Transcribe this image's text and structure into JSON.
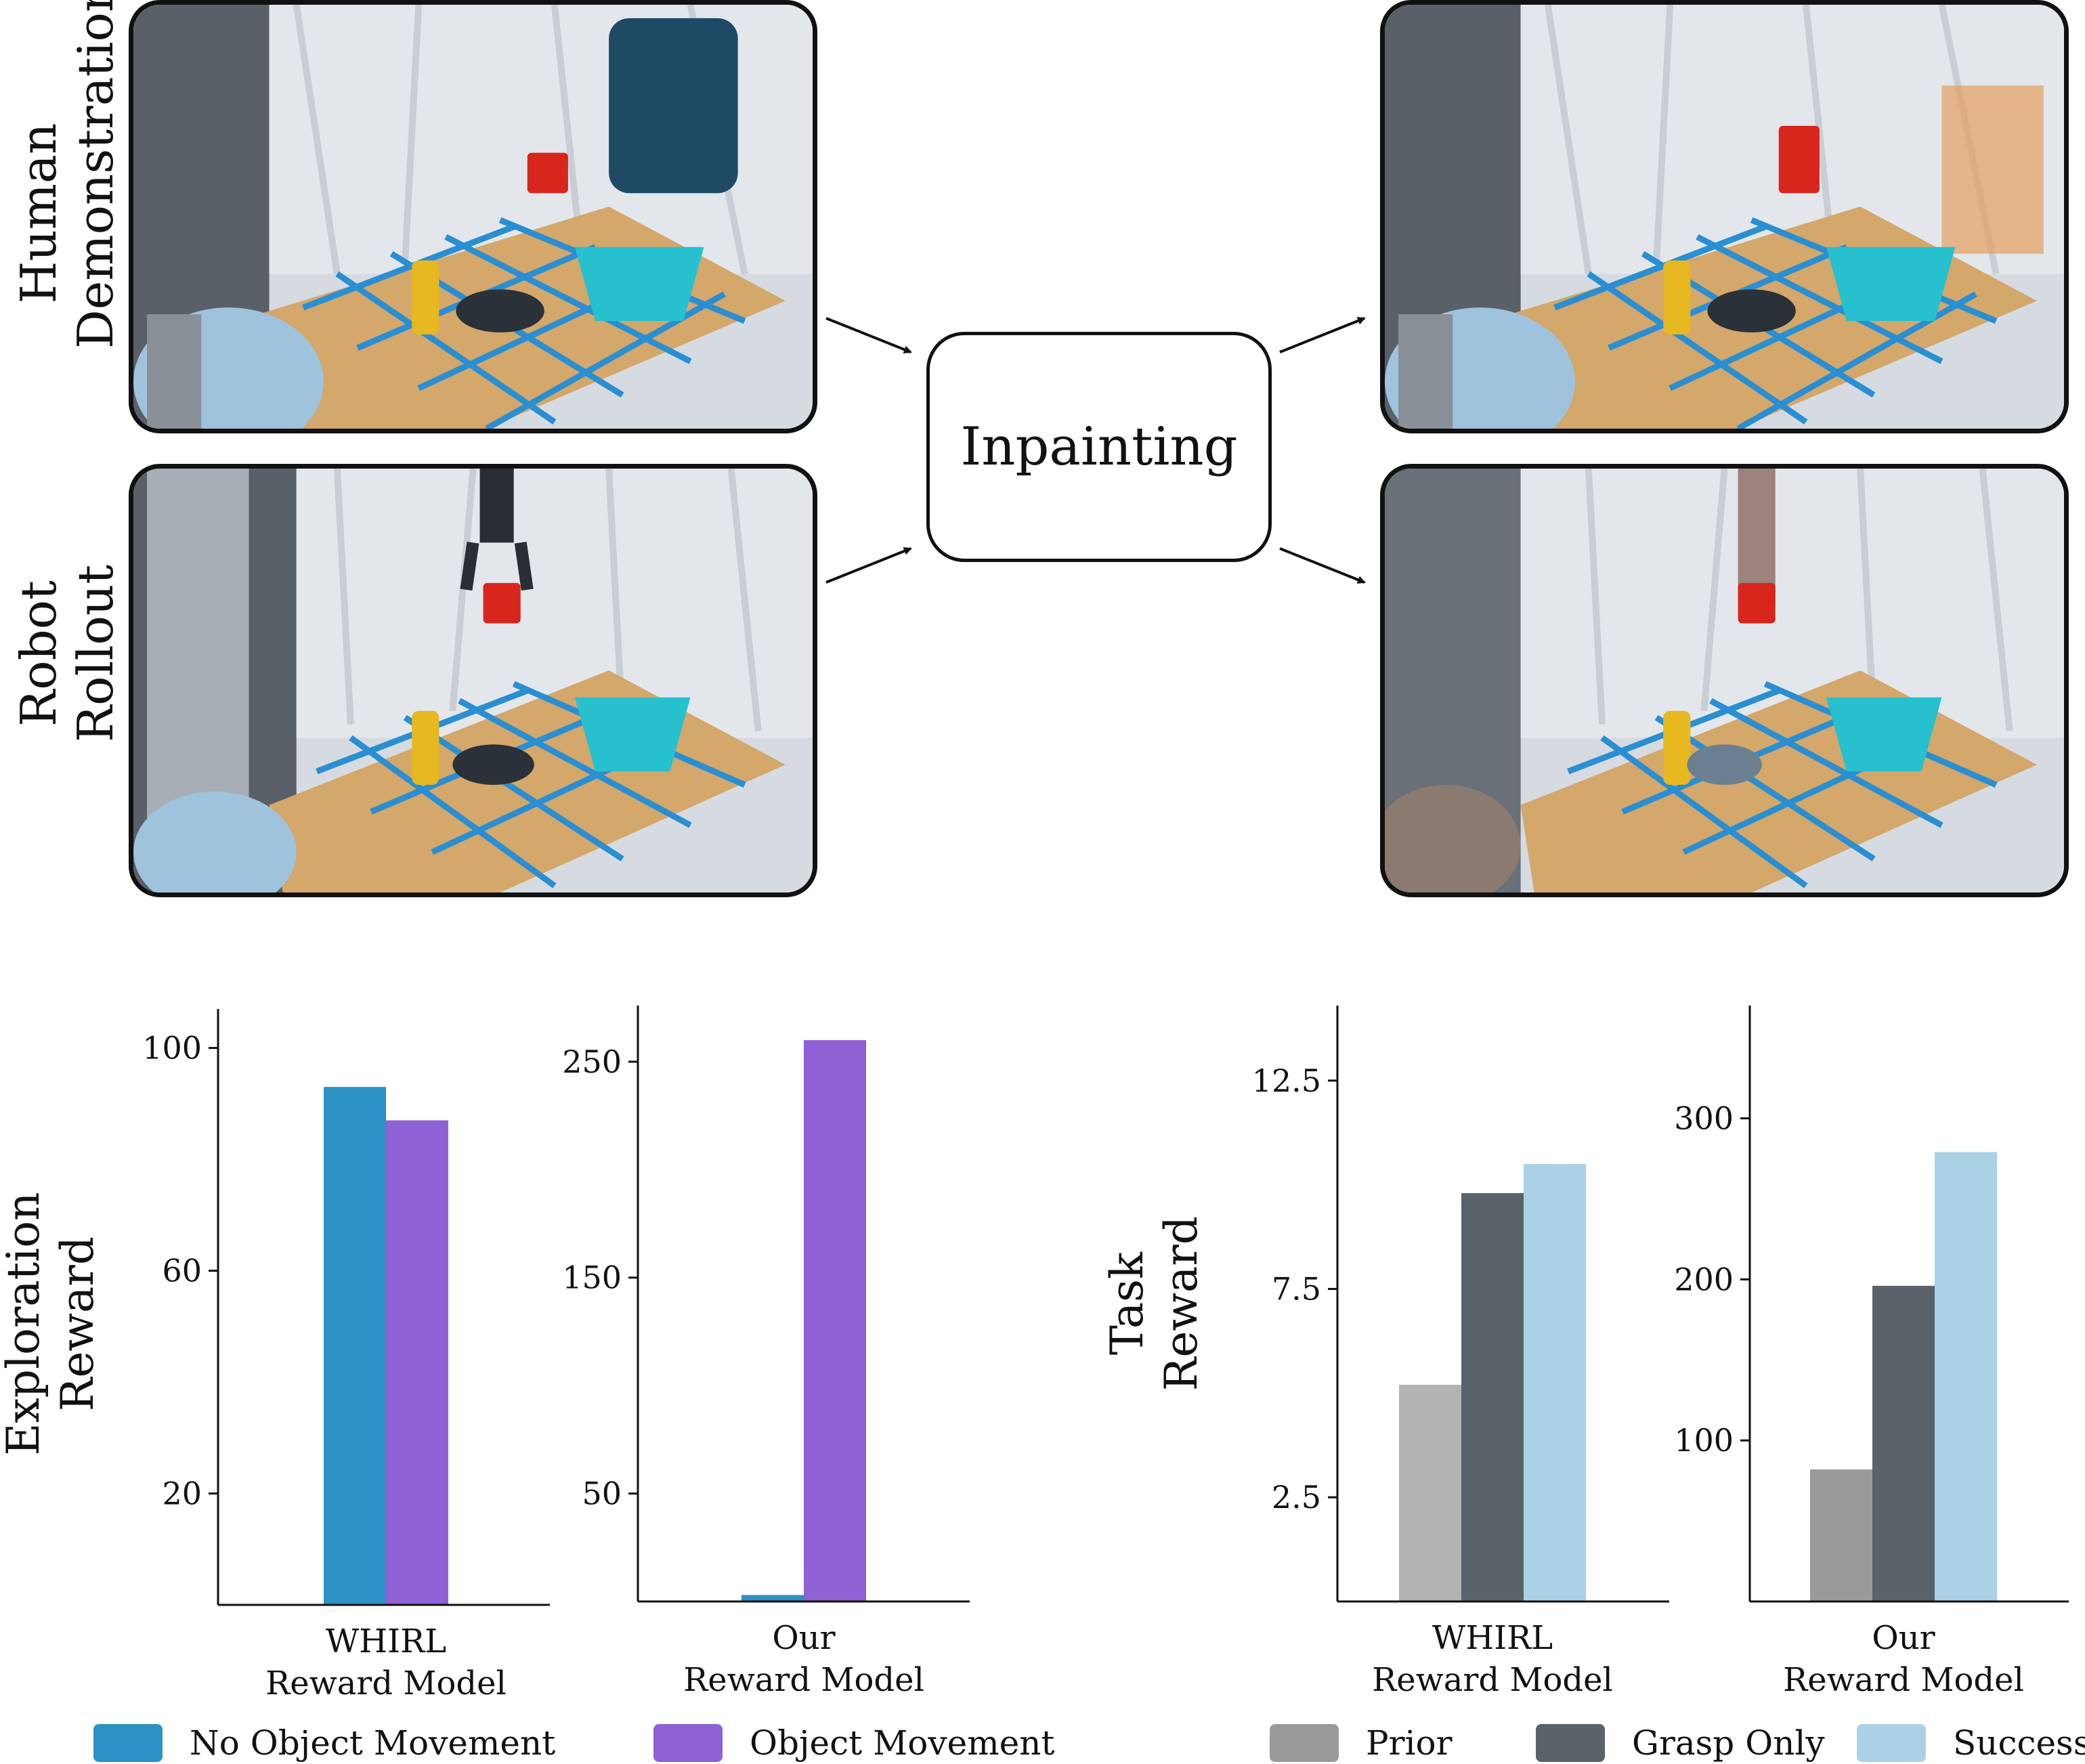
{
  "figure": {
    "rows": {
      "human_label": [
        "Human",
        "Demonstration"
      ],
      "robot_label": [
        "Robot",
        "Rollout"
      ]
    },
    "process_label": "Inpainting",
    "images": [
      {
        "name": "human-demonstration-photo"
      },
      {
        "name": "robot-rollout-photo"
      },
      {
        "name": "inpainted-human-photo"
      },
      {
        "name": "inpainted-robot-photo"
      }
    ]
  },
  "colors": {
    "no_object_movement": "#2b92c3",
    "object_movement": "#8e61d4",
    "prior": "#b3b3b3",
    "grasp_only": "#5a626a",
    "success": "#abd1e6",
    "prior_our": "#9a9a9a"
  },
  "chart_data": [
    {
      "type": "bar",
      "group_label": "Exploration Reward",
      "ylabel_lines": [
        "Exploration",
        "Reward"
      ],
      "category_lines": [
        "WHIRL",
        "Reward Model"
      ],
      "series": [
        {
          "name": "No Object Movement",
          "value": 93
        },
        {
          "name": "Object Movement",
          "value": 87
        }
      ],
      "yticks": [
        20,
        60,
        100
      ],
      "ylim": [
        0,
        107
      ]
    },
    {
      "type": "bar",
      "category_lines": [
        "Our",
        "Reward Model"
      ],
      "series": [
        {
          "name": "No Object Movement",
          "value": 3
        },
        {
          "name": "Object Movement",
          "value": 260
        }
      ],
      "yticks": [
        50,
        150,
        250
      ],
      "ylim": [
        0,
        276
      ]
    },
    {
      "type": "bar",
      "group_label": "Task Reward",
      "ylabel_lines": [
        "Task",
        "Reward"
      ],
      "category_lines": [
        "WHIRL",
        "Reward Model"
      ],
      "series": [
        {
          "name": "Prior",
          "value": 5.2
        },
        {
          "name": "Grasp Only",
          "value": 9.8
        },
        {
          "name": "Success",
          "value": 10.5
        }
      ],
      "yticks": [
        2.5,
        7.5,
        12.5
      ],
      "ylim": [
        0,
        14.3
      ]
    },
    {
      "type": "bar",
      "category_lines": [
        "Our",
        "Reward Model"
      ],
      "series": [
        {
          "name": "Prior",
          "value": 82
        },
        {
          "name": "Grasp Only",
          "value": 196
        },
        {
          "name": "Success",
          "value": 279
        }
      ],
      "yticks": [
        100,
        200,
        300
      ],
      "ylim": [
        0,
        370
      ]
    }
  ],
  "legend": {
    "left": [
      {
        "label": "No Object Movement",
        "color": "#2b92c3"
      },
      {
        "label": "Object Movement",
        "color": "#8e61d4"
      }
    ],
    "right": [
      {
        "label": "Prior",
        "color": "#9a9a9a"
      },
      {
        "label": "Grasp Only",
        "color": "#5a626a"
      },
      {
        "label": "Success",
        "color": "#abd1e6"
      }
    ]
  }
}
